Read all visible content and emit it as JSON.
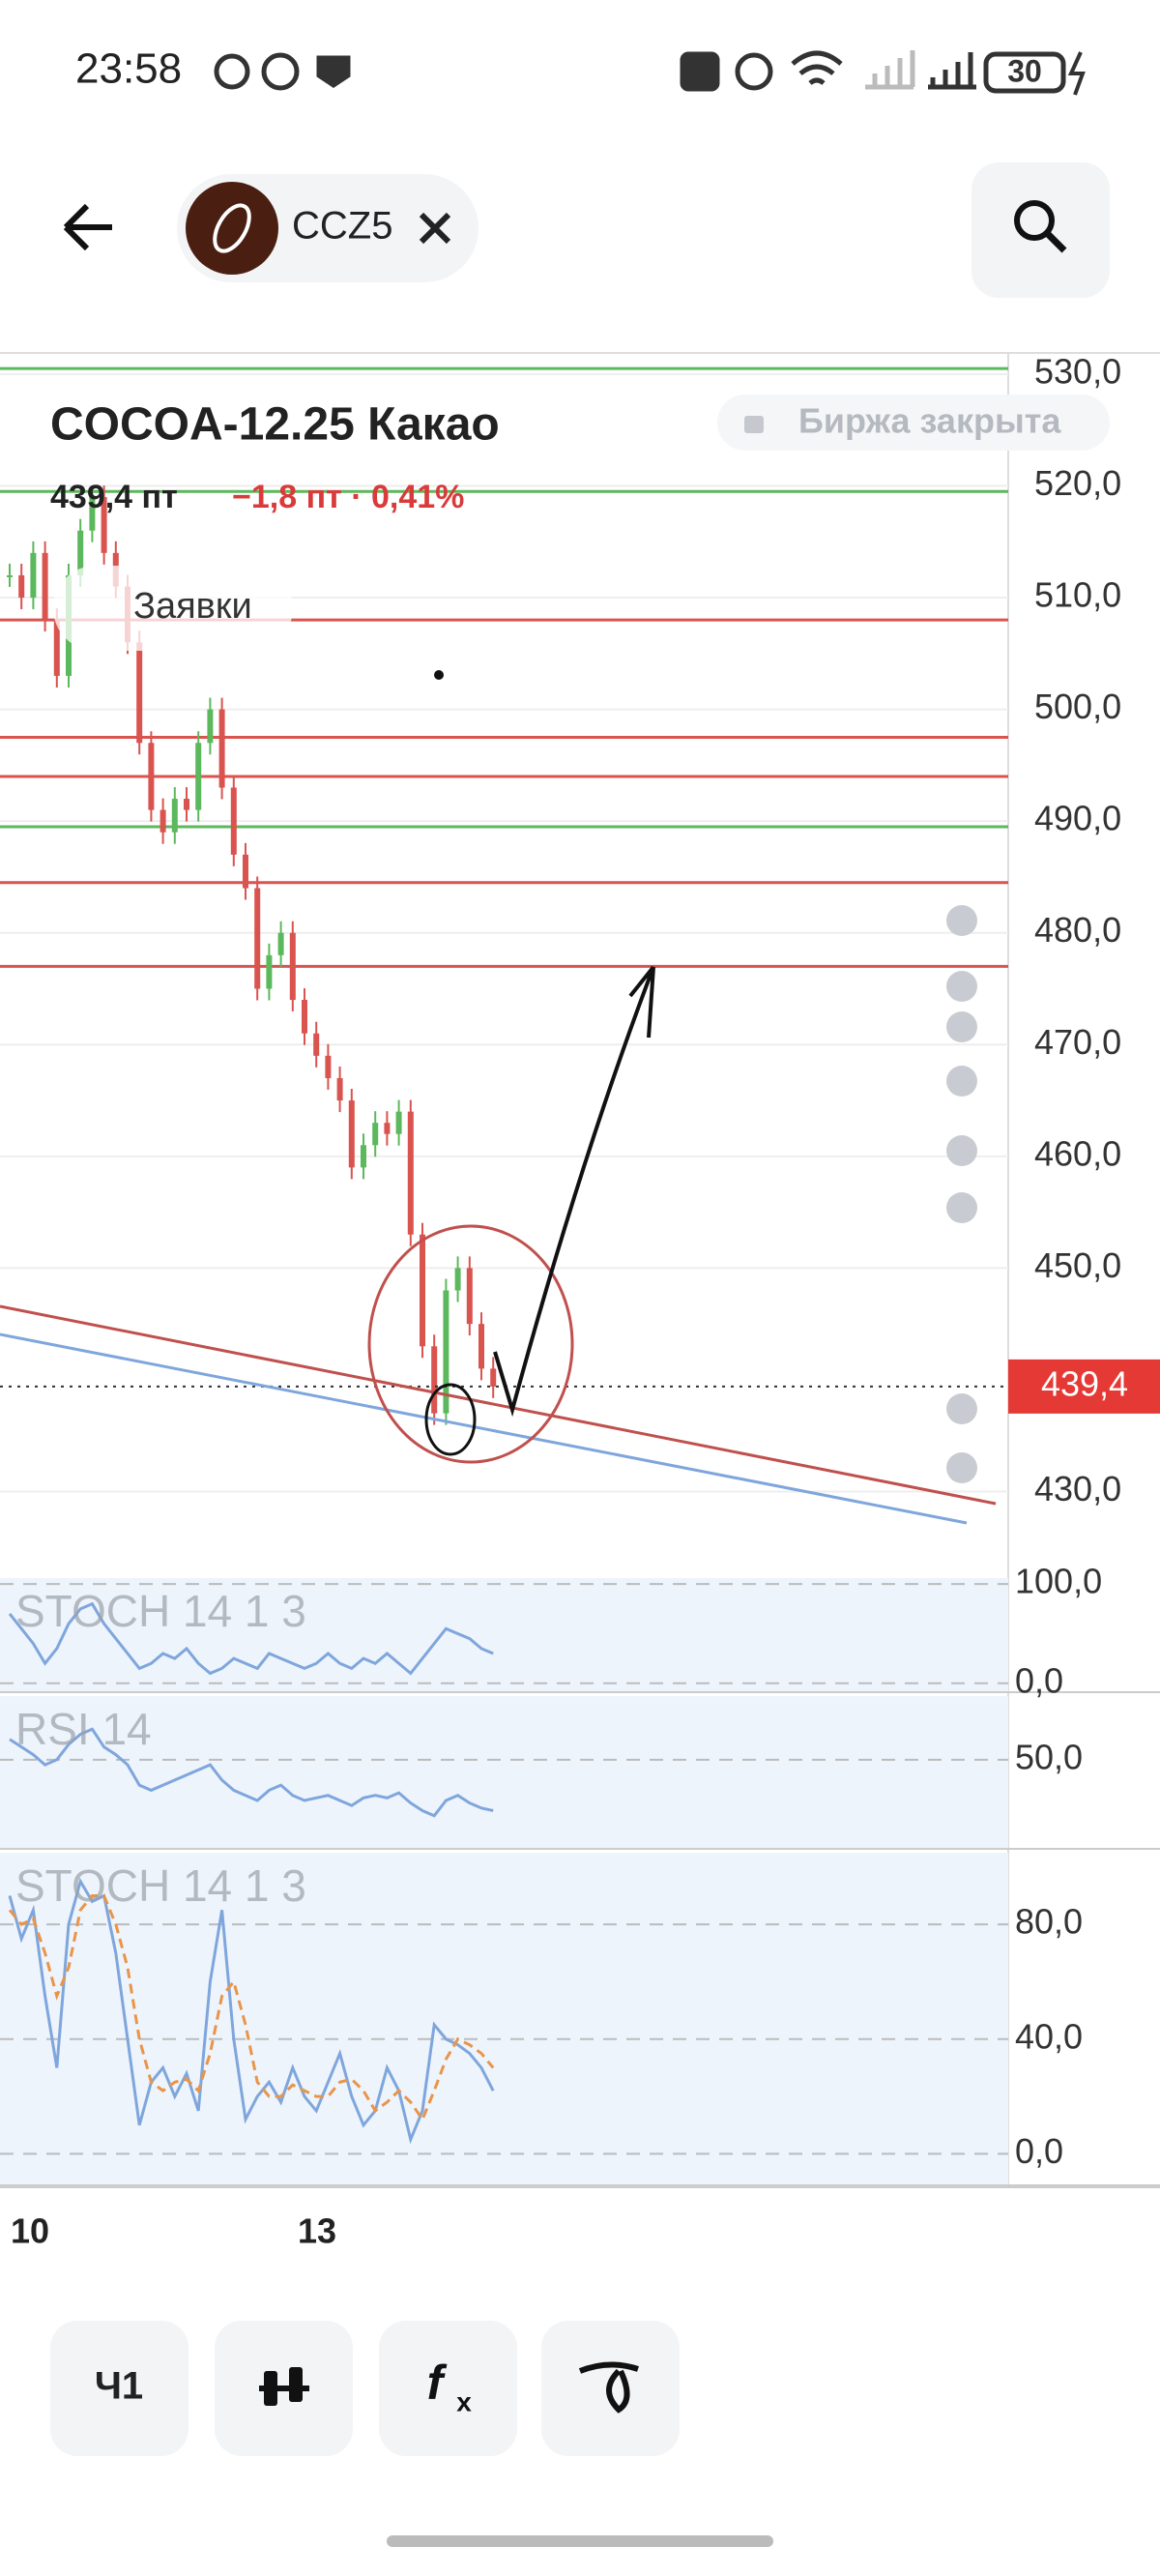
{
  "status_bar": {
    "time": "23:58",
    "battery": "30"
  },
  "header": {
    "ticker": "CCZ5"
  },
  "instrument": {
    "title": "COCOA-12.25 Какао",
    "market_status": "Биржа закрыта",
    "price": "439,4 пт",
    "change": "−1,8 пт · 0,41%",
    "orders_button": "Заявки"
  },
  "x_axis": {
    "labels": [
      "10",
      "13"
    ]
  },
  "toolbar": {
    "interval": "Ч1",
    "indicators_icon": [
      "f",
      "x"
    ]
  },
  "chart_data": [
    {
      "type": "candlestick",
      "ylim": [
        422.6,
        531.9
      ],
      "yticks": [
        {
          "value": 530,
          "label": "530,0"
        },
        {
          "value": 520,
          "label": "520,0"
        },
        {
          "value": 510,
          "label": "510,0"
        },
        {
          "value": 500,
          "label": "500,0"
        },
        {
          "value": 490,
          "label": "490,0"
        },
        {
          "value": 480,
          "label": "480,0"
        },
        {
          "value": 470,
          "label": "470,0"
        },
        {
          "value": 460,
          "label": "460,0"
        },
        {
          "value": 450,
          "label": "450,0"
        },
        {
          "value": 430,
          "label": "430,0"
        }
      ],
      "values": [
        512,
        510,
        514,
        508,
        503,
        512,
        516,
        519,
        514,
        511,
        506,
        497,
        491,
        489,
        492,
        491,
        497,
        500,
        493,
        487,
        484,
        475,
        478,
        480,
        474,
        471,
        469,
        467,
        465,
        459,
        461,
        463,
        462,
        464,
        453,
        443,
        437,
        448,
        450,
        445,
        441,
        439.4
      ],
      "up_color": "#5cb85c",
      "down_color": "#d9534f",
      "levels": [
        {
          "value": 530.5,
          "color": "#5cb85c"
        },
        {
          "value": 519.5,
          "color": "#5cb85c"
        },
        {
          "value": 508,
          "color": "#d9534f"
        },
        {
          "value": 497.5,
          "color": "#d9534f"
        },
        {
          "value": 494,
          "color": "#d9534f"
        },
        {
          "value": 489.5,
          "color": "#5cb85c"
        },
        {
          "value": 484.5,
          "color": "#d9534f"
        },
        {
          "value": 477,
          "color": "#d9534f"
        }
      ],
      "last_price": {
        "value": 439.4,
        "label": "439,4"
      }
    },
    {
      "type": "line",
      "title": "STOCH 14 1 3",
      "ylim": [
        -9,
        106
      ],
      "yticks": [
        {
          "value": 100,
          "label": "100,0"
        },
        {
          "value": 0,
          "label": "0,0"
        }
      ],
      "series": [
        {
          "color": "#7fa6dc",
          "values": [
            70,
            55,
            40,
            20,
            35,
            60,
            75,
            80,
            60,
            45,
            30,
            15,
            20,
            30,
            25,
            35,
            20,
            10,
            15,
            25,
            20,
            15,
            30,
            25,
            20,
            15,
            20,
            30,
            20,
            15,
            25,
            20,
            30,
            20,
            10,
            25,
            40,
            55,
            50,
            45,
            35,
            30
          ]
        }
      ]
    },
    {
      "type": "line",
      "title": "RSI 14",
      "ylim": [
        15,
        75
      ],
      "yticks": [
        {
          "value": 50,
          "label": "50,0"
        }
      ],
      "series": [
        {
          "color": "#7fa6dc",
          "values": [
            58,
            55,
            52,
            48,
            50,
            56,
            60,
            62,
            55,
            52,
            48,
            40,
            38,
            40,
            42,
            44,
            46,
            48,
            42,
            38,
            36,
            34,
            38,
            40,
            36,
            34,
            35,
            36,
            34,
            32,
            35,
            36,
            35,
            37,
            33,
            30,
            28,
            34,
            36,
            33,
            31,
            30
          ]
        }
      ]
    },
    {
      "type": "line",
      "title": "STOCH 14 1 3",
      "ylim": [
        -11,
        105
      ],
      "yticks": [
        {
          "value": 80,
          "label": "80,0"
        },
        {
          "value": 40,
          "label": "40,0"
        },
        {
          "value": 0,
          "label": "0,0"
        }
      ],
      "series": [
        {
          "color": "#7fa6dc",
          "values": [
            90,
            75,
            85,
            55,
            30,
            80,
            95,
            88,
            90,
            70,
            40,
            10,
            25,
            30,
            20,
            28,
            15,
            60,
            85,
            40,
            12,
            20,
            25,
            18,
            30,
            20,
            15,
            25,
            35,
            20,
            10,
            15,
            30,
            22,
            5,
            15,
            45,
            40,
            38,
            35,
            30,
            22
          ]
        },
        {
          "color": "#e8954a",
          "dashed": true,
          "values": [
            85,
            80,
            82,
            70,
            55,
            65,
            85,
            90,
            90,
            80,
            65,
            40,
            25,
            22,
            25,
            26,
            22,
            35,
            55,
            60,
            45,
            25,
            20,
            20,
            24,
            22,
            20,
            20,
            25,
            26,
            22,
            15,
            18,
            22,
            18,
            12,
            22,
            33,
            40,
            38,
            35,
            30
          ]
        }
      ]
    }
  ]
}
